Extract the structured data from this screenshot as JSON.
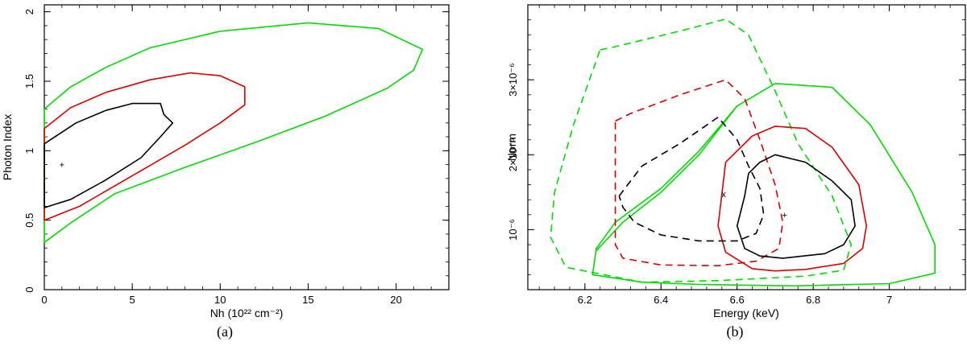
{
  "chart_data": [
    {
      "type": "line",
      "panel_label": "(a)",
      "xlabel": "Nh (10²² cm⁻²)",
      "ylabel": "Photon Index",
      "xlim": [
        0,
        23
      ],
      "ylim": [
        0,
        2.05
      ],
      "x_ticks": [
        0,
        5,
        10,
        15,
        20
      ],
      "x_tick_labels": [
        "0",
        "5",
        "10",
        "15",
        "20"
      ],
      "y_ticks": [
        0,
        0.5,
        1,
        1.5,
        2
      ],
      "y_tick_labels": [
        "0",
        "0.5",
        "1",
        "1.5",
        "2"
      ],
      "grid": false,
      "best_fit": {
        "x": 1.0,
        "y": 0.9,
        "symbol": "+"
      },
      "series": [
        {
          "color": "#00dd00",
          "dash": "solid",
          "x": [
            0,
            1.5,
            3.5,
            6,
            10,
            15,
            19,
            21.5,
            21,
            19.5,
            16,
            12,
            8,
            4,
            1.5,
            0,
            0
          ],
          "y": [
            1.3,
            1.46,
            1.6,
            1.74,
            1.86,
            1.92,
            1.88,
            1.73,
            1.58,
            1.45,
            1.25,
            1.06,
            0.88,
            0.69,
            0.48,
            0.34,
            1.3
          ]
        },
        {
          "color": "#dd0000",
          "dash": "solid",
          "x": [
            0,
            1.5,
            3.5,
            6,
            8.3,
            10,
            11.4,
            11.4,
            10,
            8,
            5,
            2,
            0,
            0
          ],
          "y": [
            1.16,
            1.31,
            1.42,
            1.51,
            1.56,
            1.54,
            1.46,
            1.33,
            1.2,
            1.04,
            0.82,
            0.6,
            0.5,
            1.16
          ]
        },
        {
          "color": "#000000",
          "dash": "solid",
          "x": [
            0,
            1.8,
            3.5,
            5,
            6.6,
            6.8,
            7.3,
            6.6,
            5.5,
            3.5,
            1.5,
            0,
            0
          ],
          "y": [
            1.05,
            1.2,
            1.29,
            1.34,
            1.34,
            1.26,
            1.2,
            1.1,
            0.95,
            0.79,
            0.65,
            0.59,
            1.05
          ]
        }
      ]
    },
    {
      "type": "line",
      "panel_label": "(b)",
      "xlabel": "Energy (keV)",
      "ylabel": "Norm",
      "xlim": [
        6.05,
        7.2
      ],
      "ylim_e6": [
        0.2,
        4.0
      ],
      "x_ticks": [
        6.2,
        6.4,
        6.6,
        6.8,
        7.0
      ],
      "x_tick_labels": [
        "6.2",
        "6.4",
        "6.6",
        "6.8",
        "7"
      ],
      "y_ticks_e6": [
        1,
        2,
        3
      ],
      "y_tick_labels": [
        "10⁻⁶",
        "2×10⁻⁶",
        "3×10⁻⁶"
      ],
      "grid": false,
      "markers": [
        {
          "x": 6.565,
          "y_e6": 1.48,
          "symbol": "x"
        },
        {
          "x": 6.725,
          "y_e6": 1.2,
          "symbol": "+"
        }
      ],
      "series": [
        {
          "color": "#00dd00",
          "dash": "dashed",
          "x": [
            6.24,
            6.27,
            6.45,
            6.57,
            6.63,
            6.7,
            6.76,
            6.85,
            6.9,
            6.88,
            6.78,
            6.55,
            6.35,
            6.15,
            6.11,
            6.12,
            6.17,
            6.24
          ],
          "y_e6": [
            3.4,
            3.43,
            3.65,
            3.81,
            3.6,
            2.85,
            2.15,
            1.45,
            0.8,
            0.46,
            0.38,
            0.32,
            0.3,
            0.5,
            0.9,
            1.5,
            2.4,
            3.4
          ]
        },
        {
          "color": "#00dd00",
          "dash": "solid",
          "x": [
            6.23,
            6.3,
            6.4,
            6.5,
            6.6,
            6.7,
            6.85,
            6.95,
            7.06,
            7.12,
            7.12,
            7.0,
            6.75,
            6.5,
            6.35,
            6.22,
            6.23,
            6.28,
            6.4,
            6.5,
            6.6
          ],
          "y_e6": [
            0.72,
            1.1,
            1.5,
            2.0,
            2.65,
            2.95,
            2.9,
            2.4,
            1.5,
            0.8,
            0.42,
            0.28,
            0.25,
            0.27,
            0.3,
            0.4,
            0.75,
            1.1,
            1.55,
            2.05,
            2.65
          ]
        },
        {
          "color": "#dd0000",
          "dash": "dashed",
          "x": [
            6.28,
            6.32,
            6.45,
            6.57,
            6.62,
            6.66,
            6.7,
            6.72,
            6.71,
            6.65,
            6.55,
            6.4,
            6.3,
            6.28,
            6.28,
            6.28
          ],
          "y_e6": [
            2.45,
            2.55,
            2.8,
            3.0,
            2.75,
            2.2,
            1.6,
            1.1,
            0.75,
            0.58,
            0.52,
            0.53,
            0.62,
            0.8,
            1.2,
            2.45
          ]
        },
        {
          "color": "#dd0000",
          "dash": "solid",
          "x": [
            6.57,
            6.64,
            6.7,
            6.78,
            6.85,
            6.92,
            6.94,
            6.93,
            6.88,
            6.78,
            6.7,
            6.64,
            6.57,
            6.55,
            6.57
          ],
          "y_e6": [
            1.9,
            2.25,
            2.38,
            2.35,
            2.1,
            1.6,
            1.05,
            0.75,
            0.55,
            0.47,
            0.45,
            0.48,
            0.7,
            1.05,
            1.9
          ]
        },
        {
          "color": "#000000",
          "dash": "dashed",
          "x": [
            6.29,
            6.35,
            6.45,
            6.55,
            6.6,
            6.63,
            6.66,
            6.67,
            6.65,
            6.6,
            6.5,
            6.4,
            6.33,
            6.3,
            6.29
          ],
          "y_e6": [
            1.45,
            1.85,
            2.15,
            2.5,
            2.2,
            1.85,
            1.55,
            1.2,
            0.95,
            0.85,
            0.85,
            0.93,
            1.1,
            1.3,
            1.45
          ]
        },
        {
          "color": "#000000",
          "dash": "solid",
          "x": [
            6.63,
            6.66,
            6.7,
            6.78,
            6.85,
            6.9,
            6.91,
            6.88,
            6.83,
            6.72,
            6.66,
            6.62,
            6.6,
            6.62,
            6.63
          ],
          "y_e6": [
            1.75,
            1.9,
            2.0,
            1.9,
            1.65,
            1.4,
            1.05,
            0.8,
            0.68,
            0.62,
            0.65,
            0.75,
            1.05,
            1.45,
            1.75
          ]
        }
      ]
    }
  ]
}
